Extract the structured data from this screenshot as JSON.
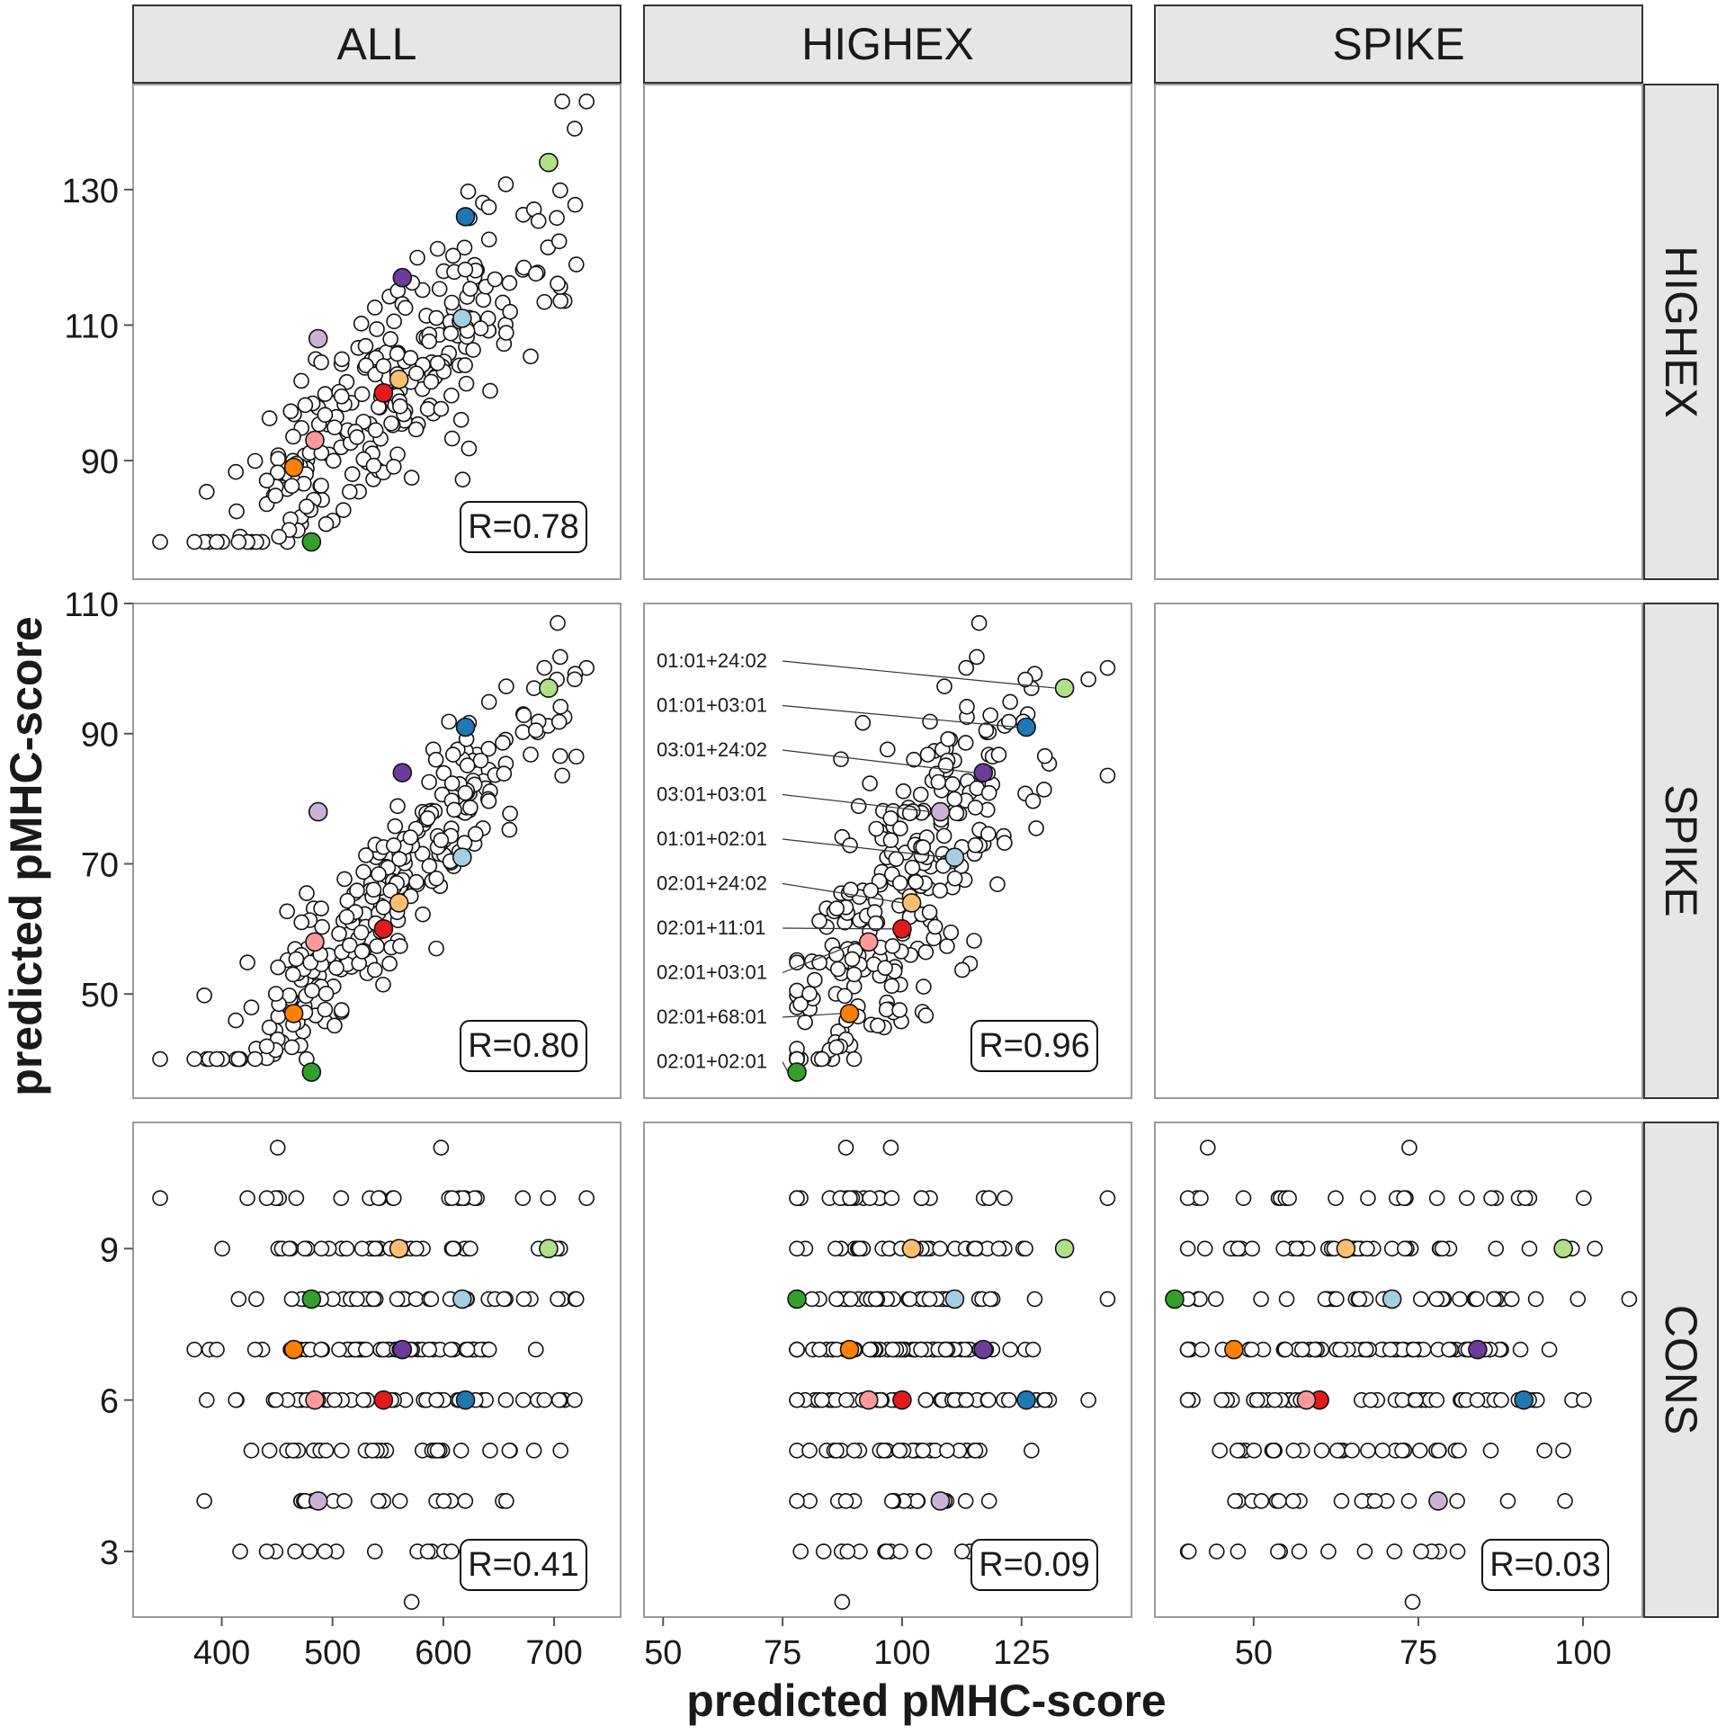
{
  "chart_data": {
    "type": "scatter",
    "x_label": "predicted pMHC-score",
    "y_label": "predicted pMHC-score",
    "column_strips": [
      "ALL",
      "HIGHEX",
      "SPIKE"
    ],
    "row_strips": [
      "HIGHEX",
      "SPIKE",
      "CONS"
    ],
    "x_axes": [
      {
        "range": [
          320,
          760
        ],
        "ticks": [
          400,
          500,
          600,
          700
        ]
      },
      {
        "range": [
          46,
          148
        ],
        "ticks": [
          50,
          75,
          100,
          125
        ]
      },
      {
        "range": [
          35,
          109
        ],
        "ticks": [
          50,
          75,
          100
        ]
      }
    ],
    "y_axes": [
      {
        "range": [
          72.5,
          145.5
        ],
        "ticks": [
          90,
          110,
          130
        ]
      },
      {
        "range": [
          34,
          110
        ],
        "ticks": [
          50,
          70,
          90,
          110
        ]
      },
      {
        "range": [
          1.7,
          11.5
        ],
        "ticks": [
          3,
          6,
          9
        ]
      }
    ],
    "highlight_colors": {
      "01:01+24:02": "#b2df8a",
      "01:01+03:01": "#1f78b4",
      "03:01+24:02": "#6a3d9a",
      "03:01+03:01": "#cab2d6",
      "01:01+02:01": "#a6cee3",
      "02:01+24:02": "#fdbf6f",
      "02:01+11:01": "#e31a1c",
      "02:01+03:01": "#fb9a99",
      "02:01+68:01": "#ff7f00",
      "02:01+02:01": "#33a02c"
    },
    "genotype_labels": [
      "01:01+24:02",
      "01:01+03:01",
      "03:01+24:02",
      "03:01+03:01",
      "01:01+02:01",
      "02:01+24:02",
      "02:01+11:01",
      "02:01+03:01",
      "02:01+68:01",
      "02:01+02:01"
    ],
    "highlighted": {
      "01:01+24:02": {
        "all": 695,
        "highex": 134,
        "spike": 97,
        "cons": 9
      },
      "01:01+03:01": {
        "all": 620,
        "highex": 126,
        "spike": 91,
        "cons": 6
      },
      "03:01+24:02": {
        "all": 563,
        "highex": 117,
        "spike": 84,
        "cons": 7
      },
      "03:01+03:01": {
        "all": 487,
        "highex": 108,
        "spike": 78,
        "cons": 4
      },
      "01:01+02:01": {
        "all": 617,
        "highex": 111,
        "spike": 71,
        "cons": 8
      },
      "02:01+24:02": {
        "all": 560,
        "highex": 102,
        "spike": 64,
        "cons": 9
      },
      "02:01+11:01": {
        "all": 546,
        "highex": 100,
        "spike": 60,
        "cons": 6
      },
      "02:01+03:01": {
        "all": 484,
        "highex": 93,
        "spike": 58,
        "cons": 6
      },
      "02:01+68:01": {
        "all": 465,
        "highex": 89,
        "spike": 47,
        "cons": 7
      },
      "02:01+02:01": {
        "all": 481,
        "highex": 78,
        "spike": 38,
        "cons": 8
      }
    },
    "panels": [
      {
        "row": 0,
        "col": 0,
        "label": "R=0.78"
      },
      {
        "row": 1,
        "col": 0,
        "label": "R=0.80"
      },
      {
        "row": 1,
        "col": 1,
        "label": "R=0.96",
        "labeled": true
      },
      {
        "row": 2,
        "col": 0,
        "label": "R=0.41"
      },
      {
        "row": 2,
        "col": 1,
        "label": "R=0.09"
      },
      {
        "row": 2,
        "col": 2,
        "label": "R=0.03"
      }
    ],
    "background_points": {
      "count": 260,
      "seed": 20240617,
      "cons_levels": [
        2,
        3,
        4,
        5,
        6,
        7,
        8,
        9,
        10,
        11
      ],
      "cons_weights": [
        2,
        10,
        14,
        22,
        34,
        34,
        30,
        26,
        18,
        2
      ]
    }
  }
}
